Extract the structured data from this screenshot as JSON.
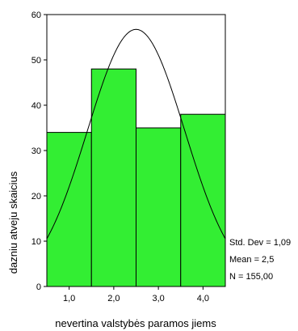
{
  "chart_data": {
    "type": "bar",
    "chart_kind": "histogram with normal curve",
    "categories": [
      "1,0",
      "2,0",
      "3,0",
      "4,0"
    ],
    "x": [
      1.0,
      2.0,
      3.0,
      4.0
    ],
    "values": [
      34,
      48,
      35,
      38
    ],
    "xlim": [
      0.5,
      4.5
    ],
    "ylim": [
      0,
      60
    ],
    "yticks": [
      "0",
      "10",
      "20",
      "30",
      "40",
      "50",
      "60"
    ],
    "xlabel": "nevertina valstybės paramos jiems",
    "ylabel": "dazniu atveju skaicius",
    "bar_color": "#33ee33",
    "curve_color": "#000000",
    "normal_curve": {
      "mean": 2.5,
      "std": 1.09,
      "n": 155,
      "bin_width": 1.0
    },
    "grid": false,
    "stats": {
      "std_dev": "Std. Dev = 1,09",
      "mean": "Mean = 2,5",
      "n": "N = 155,00"
    }
  }
}
